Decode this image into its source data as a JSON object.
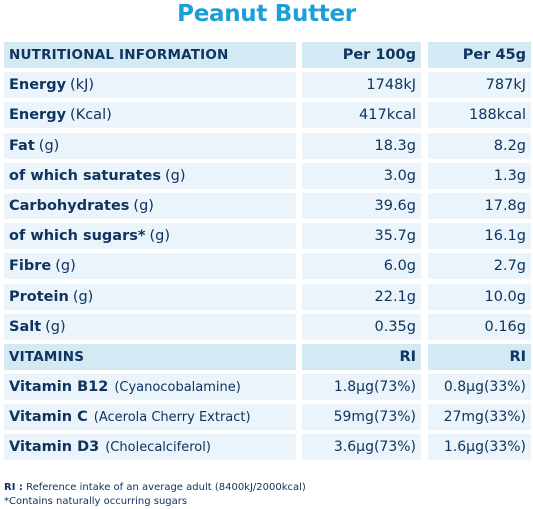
{
  "title": "Peanut Butter",
  "nutrition": {
    "header": {
      "label": "NUTRITIONAL INFORMATION",
      "col1": "Per 100g",
      "col2": "Per 45g"
    },
    "rows": [
      {
        "name": "Energy",
        "unit": "(kJ)",
        "col1": "1748kJ",
        "col2": "787kJ"
      },
      {
        "name": "Energy",
        "unit": "(Kcal)",
        "col1": "417kcal",
        "col2": "188kcal"
      },
      {
        "name": "Fat",
        "unit": "(g)",
        "col1": "18.3g",
        "col2": "8.2g"
      },
      {
        "name": "of which saturates",
        "unit": "(g)",
        "col1": "3.0g",
        "col2": "1.3g"
      },
      {
        "name": "Carbohydrates",
        "unit": "(g)",
        "col1": "39.6g",
        "col2": "17.8g"
      },
      {
        "name": "of which sugars*",
        "unit": "(g)",
        "col1": "35.7g",
        "col2": "16.1g"
      },
      {
        "name": "Fibre",
        "unit": "(g)",
        "col1": "6.0g",
        "col2": "2.7g"
      },
      {
        "name": "Protein",
        "unit": "(g)",
        "col1": "22.1g",
        "col2": "10.0g"
      },
      {
        "name": "Salt",
        "unit": "(g)",
        "col1": "0.35g",
        "col2": "0.16g"
      }
    ]
  },
  "vitamins": {
    "header": {
      "label": "VITAMINS",
      "col1": "RI",
      "col2": "RI"
    },
    "rows": [
      {
        "name": "Vitamin B12",
        "unit": "(Cyanocobalamine)",
        "col1": "1.8μg(73%)",
        "col2": "0.8μg(33%)"
      },
      {
        "name": "Vitamin C",
        "unit": "(Acerola Cherry Extract)",
        "col1": "59mg(73%)",
        "col2": "27mg(33%)"
      },
      {
        "name": "Vitamin D3",
        "unit": "(Cholecalciferol)",
        "col1": "3.6μg(73%)",
        "col2": "1.6μg(33%)"
      }
    ]
  },
  "footnotes": {
    "ri_key": "RI :",
    "ri_text": "Reference intake of an average adult (8400kJ/2000kcal)",
    "sugars": "*Contains naturally occurring sugars"
  }
}
